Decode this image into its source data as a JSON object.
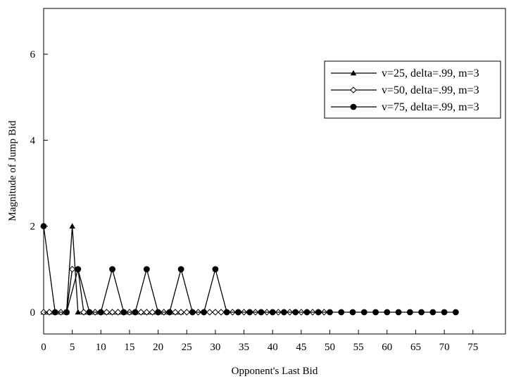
{
  "chart_data": {
    "type": "line",
    "title": "",
    "xlabel": "Opponent's Last Bid",
    "ylabel": "Magnitude of Jump Bid",
    "xlim": [
      0,
      80
    ],
    "ylim": [
      -0.5,
      7
    ],
    "xticks": [
      0,
      5,
      10,
      15,
      20,
      25,
      30,
      35,
      40,
      45,
      50,
      55,
      60,
      65,
      70,
      75
    ],
    "yticks": [
      0,
      2,
      4,
      6
    ],
    "grid": false,
    "legend_position": "top-right",
    "series": [
      {
        "name": "v=25, delta=.99, m=3",
        "marker": "triangle",
        "x": [
          0,
          1,
          2,
          3,
          4,
          5,
          6,
          7,
          8,
          9,
          10,
          11,
          12,
          13,
          14,
          15,
          16,
          17,
          18,
          19,
          20,
          21,
          22,
          23,
          24
        ],
        "y": [
          0,
          0,
          0,
          0,
          0,
          2,
          0,
          0,
          0,
          0,
          0,
          0,
          0,
          0,
          0,
          0,
          0,
          0,
          0,
          0,
          0,
          0,
          0,
          0,
          0
        ]
      },
      {
        "name": "v=50, delta=.99, m=3",
        "marker": "diamond",
        "x": [
          0,
          1,
          2,
          3,
          4,
          5,
          6,
          7,
          8,
          9,
          10,
          11,
          12,
          13,
          14,
          15,
          16,
          17,
          18,
          19,
          20,
          21,
          22,
          23,
          24,
          25,
          26,
          27,
          28,
          29,
          30,
          31,
          32,
          33,
          34,
          35,
          36,
          37,
          38,
          39,
          40,
          41,
          42,
          43,
          44,
          45,
          46,
          47,
          48,
          49
        ],
        "y": [
          0,
          0,
          0,
          0,
          0,
          1,
          1,
          0,
          0,
          0,
          0,
          0,
          0,
          0,
          0,
          0,
          0,
          0,
          0,
          0,
          0,
          0,
          0,
          0,
          0,
          0,
          0,
          0,
          0,
          0,
          0,
          0,
          0,
          0,
          0,
          0,
          0,
          0,
          0,
          0,
          0,
          0,
          0,
          0,
          0,
          0,
          0,
          0,
          0,
          0
        ]
      },
      {
        "name": "v=75, delta=.99, m=3",
        "marker": "circle",
        "x": [
          0,
          2,
          4,
          6,
          8,
          10,
          12,
          14,
          16,
          18,
          20,
          22,
          24,
          26,
          28,
          30,
          32,
          34,
          36,
          38,
          40,
          42,
          44,
          46,
          48,
          50,
          52,
          54,
          56,
          58,
          60,
          62,
          64,
          66,
          68,
          70,
          72
        ],
        "y": [
          2,
          0,
          0,
          1,
          0,
          0,
          1,
          0,
          0,
          1,
          0,
          0,
          1,
          0,
          0,
          1,
          0,
          0,
          0,
          0,
          0,
          0,
          0,
          0,
          0,
          0,
          0,
          0,
          0,
          0,
          0,
          0,
          0,
          0,
          0,
          0,
          0
        ]
      }
    ]
  }
}
